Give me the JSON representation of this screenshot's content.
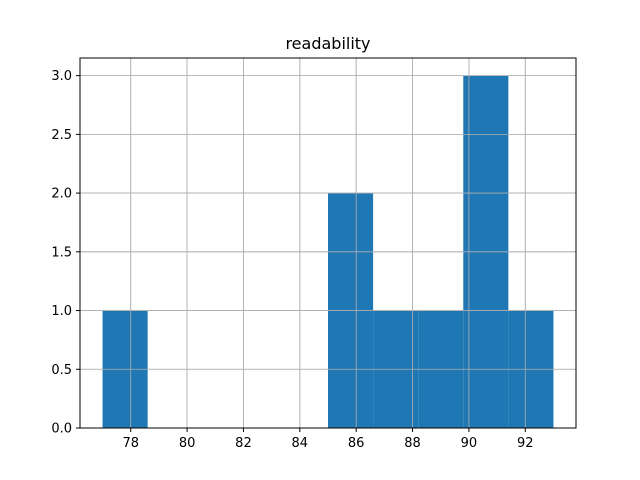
{
  "chart_data": {
    "type": "bar",
    "title": "readability",
    "xlabel": "",
    "ylabel": "",
    "bins": [
      {
        "x0": 77.0,
        "x1": 78.6,
        "count": 1
      },
      {
        "x0": 78.6,
        "x1": 80.2,
        "count": 0
      },
      {
        "x0": 80.2,
        "x1": 81.8,
        "count": 0
      },
      {
        "x0": 81.8,
        "x1": 83.4,
        "count": 0
      },
      {
        "x0": 83.4,
        "x1": 85.0,
        "count": 0
      },
      {
        "x0": 85.0,
        "x1": 86.6,
        "count": 2
      },
      {
        "x0": 86.6,
        "x1": 88.2,
        "count": 1
      },
      {
        "x0": 88.2,
        "x1": 89.8,
        "count": 1
      },
      {
        "x0": 89.8,
        "x1": 91.4,
        "count": 3
      },
      {
        "x0": 91.4,
        "x1": 93.0,
        "count": 1
      }
    ],
    "xlim": [
      76.2,
      93.8
    ],
    "ylim": [
      0,
      3.15
    ],
    "xticks": [
      78,
      80,
      82,
      84,
      86,
      88,
      90,
      92
    ],
    "yticks": [
      0.0,
      0.5,
      1.0,
      1.5,
      2.0,
      2.5,
      3.0
    ],
    "xtick_labels": [
      "78",
      "80",
      "82",
      "84",
      "86",
      "88",
      "90",
      "92"
    ],
    "ytick_labels": [
      "0.0",
      "0.5",
      "1.0",
      "1.5",
      "2.0",
      "2.5",
      "3.0"
    ],
    "grid": true,
    "bar_color": "#1f77b4",
    "grid_color": "#b0b0b0"
  }
}
